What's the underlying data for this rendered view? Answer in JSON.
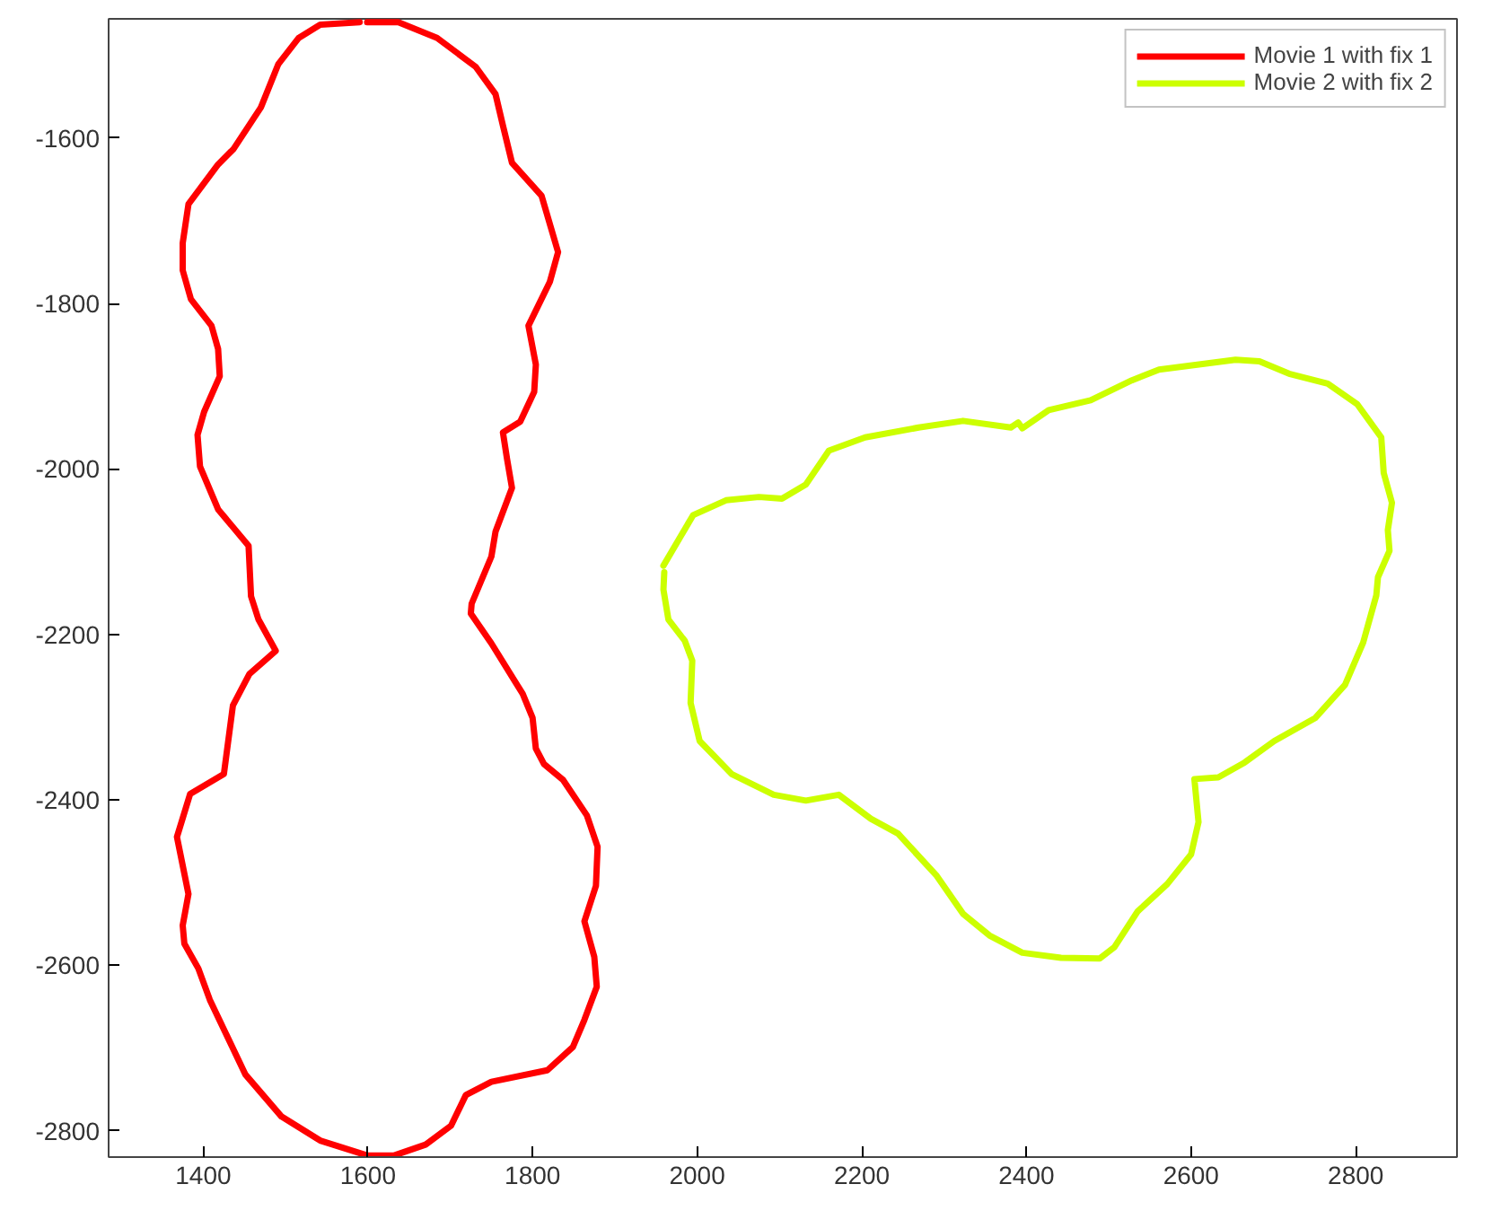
{
  "chart_data": {
    "type": "line",
    "series": [
      {
        "name": "Movie 1 with fix 1",
        "color": "#ff0000",
        "x": [
          1599,
          1637,
          1684,
          1731,
          1755,
          1764,
          1775,
          1811,
          1831,
          1821,
          1795,
          1804,
          1802,
          1785,
          1764,
          1769,
          1775,
          1755,
          1750,
          1726,
          1725,
          1750,
          1788,
          1800,
          1804,
          1814,
          1837,
          1866,
          1879,
          1877,
          1863,
          1875,
          1878,
          1863,
          1849,
          1818,
          1750,
          1719,
          1701,
          1670,
          1632,
          1599,
          1542,
          1495,
          1451,
          1408,
          1394,
          1377,
          1375,
          1382,
          1368,
          1384,
          1425,
          1436,
          1456,
          1488,
          1467,
          1458,
          1455,
          1418,
          1396,
          1393,
          1401,
          1420,
          1418,
          1410,
          1385,
          1375,
          1375,
          1382,
          1418,
          1437,
          1470,
          1491,
          1516,
          1542,
          1590
        ],
        "values": [
          -1460,
          -1460,
          -1479,
          -1514,
          -1547,
          -1585,
          -1630,
          -1670,
          -1738,
          -1774,
          -1827,
          -1874,
          -1907,
          -1943,
          -1956,
          -1988,
          -2023,
          -2076,
          -2106,
          -2163,
          -2175,
          -2211,
          -2272,
          -2301,
          -2338,
          -2357,
          -2376,
          -2419,
          -2457,
          -2504,
          -2547,
          -2590,
          -2626,
          -2666,
          -2699,
          -2727,
          -2741,
          -2757,
          -2794,
          -2817,
          -2830,
          -2830,
          -2812,
          -2783,
          -2732,
          -2642,
          -2604,
          -2574,
          -2552,
          -2514,
          -2445,
          -2393,
          -2369,
          -2286,
          -2248,
          -2220,
          -2182,
          -2154,
          -2093,
          -2049,
          -1997,
          -1959,
          -1931,
          -1888,
          -1855,
          -1827,
          -1795,
          -1760,
          -1727,
          -1680,
          -1632,
          -1613,
          -1563,
          -1511,
          -1479,
          -1463,
          -1460
        ]
      },
      {
        "name": "Movie 2 with fix 2",
        "color": "#ccff00",
        "x": [
          1959,
          1995,
          2035,
          2075,
          2103,
          2132,
          2160,
          2204,
          2269,
          2323,
          2381,
          2390,
          2395,
          2427,
          2478,
          2528,
          2561,
          2654,
          2683,
          2719,
          2766,
          2802,
          2831,
          2834,
          2844,
          2839,
          2841,
          2827,
          2825,
          2809,
          2787,
          2751,
          2701,
          2665,
          2633,
          2604,
          2609,
          2600,
          2571,
          2535,
          2507,
          2489,
          2442,
          2395,
          2355,
          2323,
          2291,
          2244,
          2211,
          2172,
          2132,
          2093,
          2042,
          2003,
          1992,
          1994,
          1985,
          1965,
          1959,
          1960
        ],
        "values": [
          -2117,
          -2056,
          -2038,
          -2034,
          -2036,
          -2019,
          -1978,
          -1962,
          -1950,
          -1942,
          -1950,
          -1944,
          -1951,
          -1929,
          -1917,
          -1893,
          -1880,
          -1868,
          -1870,
          -1885,
          -1897,
          -1922,
          -1962,
          -2005,
          -2041,
          -2074,
          -2099,
          -2131,
          -2153,
          -2210,
          -2261,
          -2301,
          -2329,
          -2355,
          -2373,
          -2375,
          -2427,
          -2466,
          -2502,
          -2535,
          -2578,
          -2592,
          -2591,
          -2585,
          -2564,
          -2538,
          -2492,
          -2441,
          -2423,
          -2394,
          -2401,
          -2394,
          -2369,
          -2329,
          -2283,
          -2232,
          -2208,
          -2182,
          -2146,
          -2125
        ]
      }
    ],
    "xlim": [
      1285,
      2923
    ],
    "ylim": [
      -2832,
      -1456
    ],
    "xticks": [
      1400,
      1600,
      1800,
      2000,
      2200,
      2400,
      2600,
      2800
    ],
    "yticks": [
      -2800,
      -2600,
      -2400,
      -2200,
      -2000,
      -1800,
      -1600
    ],
    "grid": false,
    "legend": "top right",
    "line_style": "solid"
  }
}
